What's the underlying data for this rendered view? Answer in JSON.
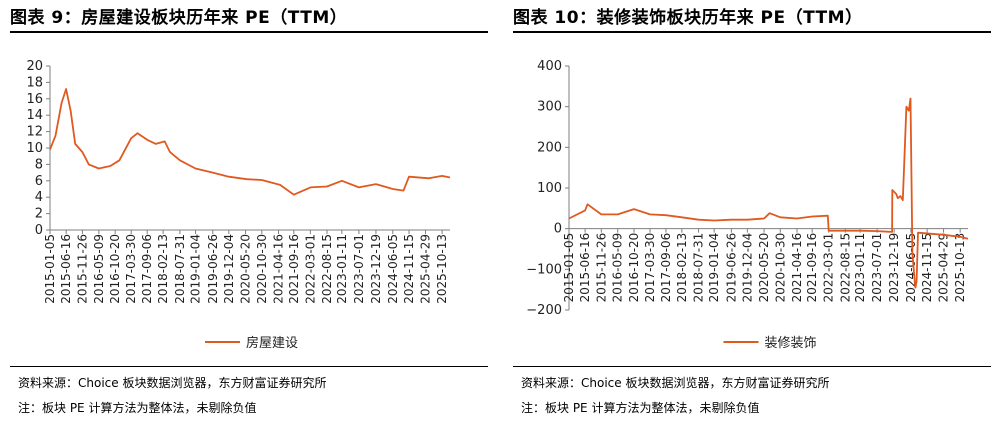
{
  "colors": {
    "series": "#E0591F",
    "axis": "#7f7f7f",
    "text": "#222222"
  },
  "left": {
    "title": "图表 9：房屋建设板块历年来 PE（TTM）",
    "source": "资料来源：Choice 板块数据浏览器，东方财富证券研究所",
    "note": "注：板块 PE 计算方法为整体法，未剔除负值"
  },
  "right": {
    "title": "图表 10：装修装饰板块历年来 PE（TTM）",
    "source": "资料来源：Choice 板块数据浏览器，东方财富证券研究所",
    "note": "注：板块 PE 计算方法为整体法，未剔除负值"
  },
  "chart_data": [
    {
      "type": "line",
      "series": [
        {
          "name": "房屋建设",
          "x": [
            "2015-01-05",
            "2015-03-01",
            "2015-05-01",
            "2015-06-16",
            "2015-08-01",
            "2015-09-15",
            "2015-11-26",
            "2016-01-29",
            "2016-05-09",
            "2016-09-01",
            "2016-12-01",
            "2017-03-30",
            "2017-06-01",
            "2017-09-06",
            "2017-12-01",
            "2018-03-01",
            "2018-04-23",
            "2018-07-31",
            "2019-01-04",
            "2019-06-26",
            "2019-12-04",
            "2020-06-01",
            "2020-10-30",
            "2021-05-01",
            "2021-09-16",
            "2022-03-01",
            "2022-08-15",
            "2023-01-11",
            "2023-07-01",
            "2023-12-19",
            "2024-06-05",
            "2024-09-20",
            "2024-11-15",
            "2025-06-01",
            "2025-10-13",
            "2025-12-31"
          ],
          "values": [
            9.8,
            11.5,
            15.5,
            17.2,
            14.5,
            10.5,
            9.5,
            8.0,
            7.5,
            7.8,
            8.5,
            11.2,
            11.8,
            11.0,
            10.5,
            10.8,
            9.5,
            8.5,
            7.5,
            7.0,
            6.5,
            6.2,
            6.1,
            5.5,
            4.3,
            5.2,
            5.3,
            6.0,
            5.2,
            5.6,
            5.0,
            4.8,
            6.5,
            6.3,
            6.6,
            6.4
          ]
        }
      ],
      "categories": [
        "2015-01-05",
        "2015-06-16",
        "2015-11-26",
        "2016-05-09",
        "2016-10-20",
        "2017-03-30",
        "2017-09-06",
        "2018-02-13",
        "2018-07-31",
        "2019-01-04",
        "2019-06-26",
        "2019-12-04",
        "2020-05-20",
        "2020-10-30",
        "2021-04-16",
        "2021-09-16",
        "2022-03-01",
        "2022-08-15",
        "2023-01-11",
        "2023-07-01",
        "2023-12-19",
        "2024-06-05",
        "2024-11-15",
        "2025-04-29",
        "2025-10-13"
      ],
      "ylim": [
        0,
        20
      ],
      "yticks": [
        0,
        2,
        4,
        6,
        8,
        10,
        12,
        14,
        16,
        18,
        20
      ],
      "legend": "bottom"
    },
    {
      "type": "line",
      "series": [
        {
          "name": "装修装饰",
          "x": [
            "2015-01-05",
            "2015-06-16",
            "2015-07-10",
            "2015-11-26",
            "2016-05-09",
            "2016-10-20",
            "2017-03-30",
            "2017-09-06",
            "2018-02-13",
            "2018-07-31",
            "2019-01-04",
            "2019-06-26",
            "2019-12-04",
            "2020-05-20",
            "2020-07-15",
            "2020-10-30",
            "2021-04-16",
            "2021-09-16",
            "2022-02-20",
            "2022-03-01",
            "2022-08-15",
            "2023-01-11",
            "2023-07-01",
            "2023-11-29",
            "2023-12-01",
            "2024-01-10",
            "2024-01-25",
            "2024-02-20",
            "2024-03-15",
            "2024-04-20",
            "2024-05-15",
            "2024-06-01",
            "2024-06-20",
            "2024-07-10",
            "2024-07-20",
            "2024-08-01",
            "2024-08-15",
            "2025-04-29",
            "2025-10-13",
            "2025-12-31"
          ],
          "values": [
            25,
            45,
            60,
            35,
            35,
            48,
            35,
            33,
            28,
            22,
            20,
            22,
            22,
            25,
            38,
            28,
            25,
            30,
            32,
            -5,
            -5,
            -5,
            -6,
            -8,
            95,
            85,
            75,
            80,
            70,
            300,
            290,
            320,
            -60,
            -120,
            -145,
            -130,
            -10,
            -15,
            -20,
            -25
          ]
        }
      ],
      "categories": [
        "2015-01-05",
        "2015-06-16",
        "2015-11-26",
        "2016-05-09",
        "2016-10-20",
        "2017-03-30",
        "2017-09-06",
        "2018-02-13",
        "2018-07-31",
        "2019-01-04",
        "2019-06-26",
        "2019-12-04",
        "2020-05-20",
        "2020-10-30",
        "2021-04-16",
        "2021-09-16",
        "2022-03-01",
        "2022-08-15",
        "2023-01-11",
        "2023-07-01",
        "2023-12-19",
        "2024-06-05",
        "2024-11-15",
        "2025-04-29",
        "2025-10-13"
      ],
      "ylim": [
        -200,
        400
      ],
      "yticks": [
        -200,
        -100,
        0,
        100,
        200,
        300,
        400
      ],
      "legend": "bottom"
    }
  ]
}
